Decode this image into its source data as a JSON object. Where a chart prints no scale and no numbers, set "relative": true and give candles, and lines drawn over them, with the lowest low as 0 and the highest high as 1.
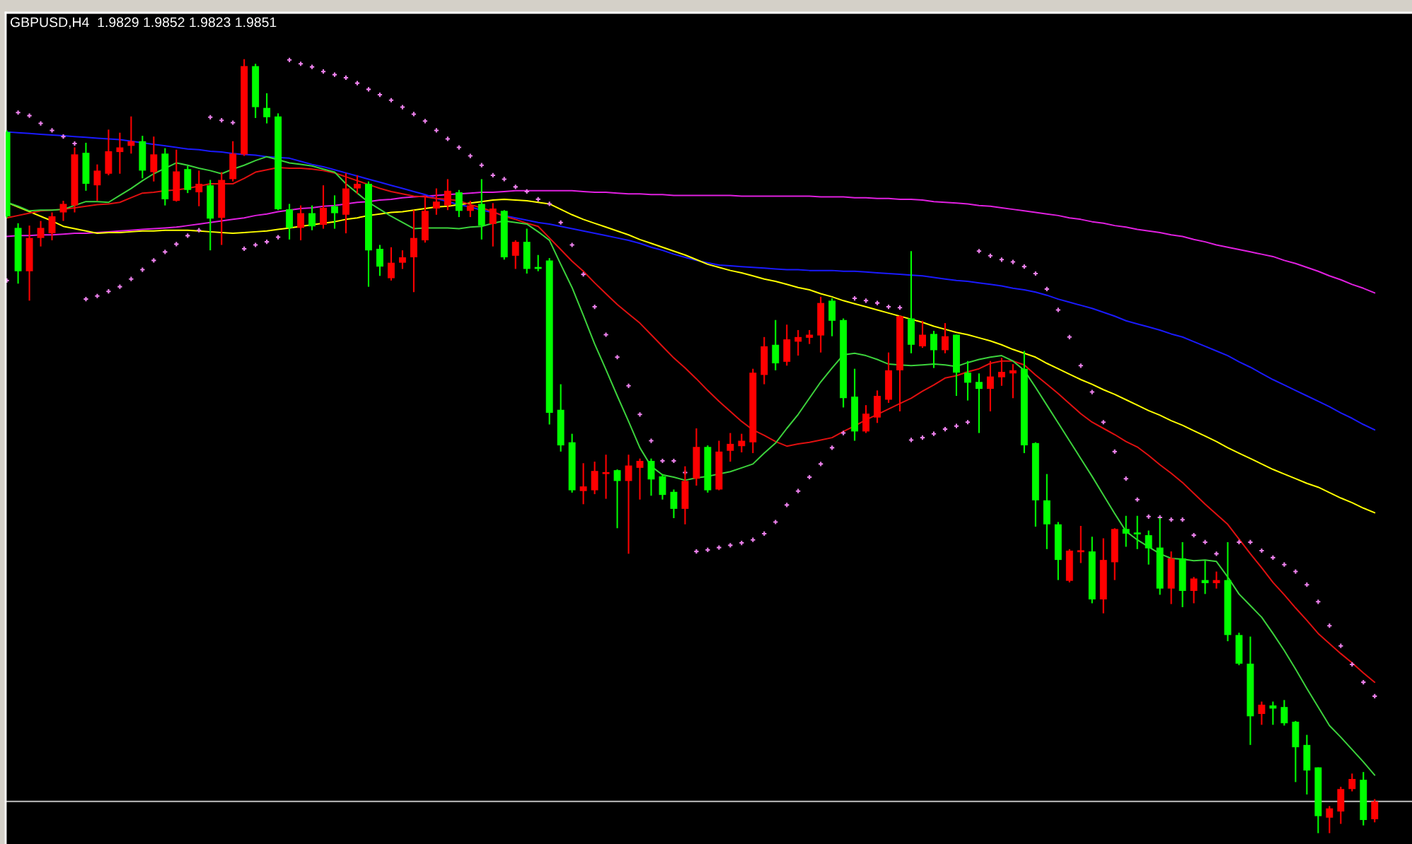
{
  "chart_data": {
    "type": "candlestick",
    "title": "GBPUSD,H4  1.9829 1.9852 1.9823 1.9851",
    "relative": true,
    "tick_labels": false,
    "categories": [
      null,
      null,
      null,
      null,
      null,
      null,
      null,
      null,
      null,
      null,
      null,
      null,
      null,
      null,
      null,
      null,
      null,
      null,
      null,
      null,
      null,
      null,
      null,
      null,
      null,
      null,
      null,
      null,
      null,
      null,
      null,
      null,
      null,
      null,
      null,
      null,
      null,
      null,
      null,
      null,
      null,
      null,
      null,
      null,
      null,
      null,
      null,
      null,
      null,
      null,
      null,
      null,
      null,
      null,
      null,
      null,
      null,
      null,
      null,
      null,
      null,
      null,
      null,
      null,
      null,
      null,
      null,
      null,
      null,
      null,
      null,
      null,
      null,
      null,
      null,
      null,
      null,
      null,
      null,
      null,
      null,
      null,
      null,
      null,
      null,
      null,
      null,
      null,
      null,
      null,
      null,
      null,
      null,
      null,
      null,
      null,
      null,
      null,
      null,
      null,
      null,
      null,
      null,
      null,
      null,
      null,
      null,
      null,
      null,
      null,
      null,
      null,
      null,
      null,
      null,
      null,
      null,
      null,
      null,
      null,
      null,
      null
    ],
    "ohlc": [
      [
        0.906,
        0.908,
        0.795,
        0.797
      ],
      [
        0.782,
        0.788,
        0.71,
        0.726
      ],
      [
        0.726,
        0.785,
        0.688,
        0.769
      ],
      [
        0.769,
        0.791,
        0.758,
        0.782
      ],
      [
        0.775,
        0.802,
        0.766,
        0.797
      ],
      [
        0.802,
        0.817,
        0.791,
        0.813
      ],
      [
        0.811,
        0.886,
        0.802,
        0.877
      ],
      [
        0.879,
        0.892,
        0.83,
        0.839
      ],
      [
        0.837,
        0.864,
        0.817,
        0.856
      ],
      [
        0.852,
        0.909,
        0.85,
        0.881
      ],
      [
        0.88,
        0.905,
        0.852,
        0.886
      ],
      [
        0.888,
        0.926,
        0.878,
        0.894
      ],
      [
        0.894,
        0.901,
        0.846,
        0.856
      ],
      [
        0.854,
        0.9,
        0.842,
        0.877
      ],
      [
        0.878,
        0.885,
        0.811,
        0.819
      ],
      [
        0.817,
        0.883,
        0.816,
        0.855
      ],
      [
        0.858,
        0.862,
        0.827,
        0.831
      ],
      [
        0.828,
        0.856,
        0.81,
        0.839
      ],
      [
        0.837,
        0.844,
        0.753,
        0.794
      ],
      [
        0.795,
        0.854,
        0.76,
        0.844
      ],
      [
        0.845,
        0.894,
        0.842,
        0.878
      ],
      [
        0.877,
        1.0,
        0.875,
        0.991
      ],
      [
        0.991,
        0.994,
        0.924,
        0.938
      ],
      [
        0.937,
        0.956,
        0.917,
        0.925
      ],
      [
        0.926,
        0.93,
        0.805,
        0.806
      ],
      [
        0.806,
        0.813,
        0.767,
        0.782
      ],
      [
        0.782,
        0.811,
        0.766,
        0.801
      ],
      [
        0.801,
        0.811,
        0.779,
        0.784
      ],
      [
        0.786,
        0.837,
        0.781,
        0.808
      ],
      [
        0.81,
        0.824,
        0.781,
        0.801
      ],
      [
        0.799,
        0.853,
        0.775,
        0.833
      ],
      [
        0.833,
        0.85,
        0.826,
        0.839
      ],
      [
        0.839,
        0.842,
        0.706,
        0.753
      ],
      [
        0.755,
        0.76,
        0.72,
        0.732
      ],
      [
        0.717,
        0.757,
        0.714,
        0.737
      ],
      [
        0.737,
        0.753,
        0.729,
        0.744
      ],
      [
        0.744,
        0.805,
        0.699,
        0.769
      ],
      [
        0.766,
        0.824,
        0.763,
        0.804
      ],
      [
        0.807,
        0.833,
        0.799,
        0.816
      ],
      [
        0.811,
        0.845,
        0.805,
        0.83
      ],
      [
        0.828,
        0.831,
        0.796,
        0.804
      ],
      [
        0.804,
        0.817,
        0.796,
        0.811
      ],
      [
        0.813,
        0.845,
        0.767,
        0.785
      ],
      [
        0.787,
        0.814,
        0.758,
        0.807
      ],
      [
        0.804,
        0.805,
        0.741,
        0.744
      ],
      [
        0.746,
        0.766,
        0.729,
        0.764
      ],
      [
        0.764,
        0.781,
        0.723,
        0.729
      ],
      [
        0.731,
        0.747,
        0.726,
        0.729
      ],
      [
        0.74,
        0.743,
        0.528,
        0.543
      ],
      [
        0.547,
        0.58,
        0.493,
        0.501
      ],
      [
        0.505,
        0.516,
        0.44,
        0.443
      ],
      [
        0.442,
        0.478,
        0.425,
        0.448
      ],
      [
        0.443,
        0.48,
        0.438,
        0.468
      ],
      [
        0.464,
        0.489,
        0.432,
        0.466
      ],
      [
        0.469,
        0.47,
        0.394,
        0.455
      ],
      [
        0.455,
        0.489,
        0.361,
        0.475
      ],
      [
        0.472,
        0.484,
        0.431,
        0.481
      ],
      [
        0.481,
        0.484,
        0.436,
        0.457
      ],
      [
        0.461,
        0.464,
        0.431,
        0.437
      ],
      [
        0.441,
        0.444,
        0.407,
        0.419
      ],
      [
        0.419,
        0.474,
        0.399,
        0.455
      ],
      [
        0.458,
        0.523,
        0.449,
        0.499
      ],
      [
        0.499,
        0.501,
        0.44,
        0.443
      ],
      [
        0.444,
        0.507,
        0.443,
        0.493
      ],
      [
        0.494,
        0.517,
        0.48,
        0.503
      ],
      [
        0.5,
        0.516,
        0.492,
        0.507
      ],
      [
        0.505,
        0.6,
        0.491,
        0.595
      ],
      [
        0.592,
        0.641,
        0.58,
        0.629
      ],
      [
        0.631,
        0.663,
        0.598,
        0.607
      ],
      [
        0.609,
        0.657,
        0.604,
        0.638
      ],
      [
        0.635,
        0.65,
        0.617,
        0.641
      ],
      [
        0.64,
        0.65,
        0.632,
        0.644
      ],
      [
        0.643,
        0.693,
        0.621,
        0.685
      ],
      [
        0.688,
        0.691,
        0.642,
        0.662
      ],
      [
        0.663,
        0.665,
        0.55,
        0.562
      ],
      [
        0.564,
        0.6,
        0.507,
        0.519
      ],
      [
        0.519,
        0.553,
        0.517,
        0.542
      ],
      [
        0.537,
        0.572,
        0.53,
        0.565
      ],
      [
        0.56,
        0.621,
        0.556,
        0.598
      ],
      [
        0.598,
        0.669,
        0.545,
        0.668
      ],
      [
        0.665,
        0.752,
        0.62,
        0.631
      ],
      [
        0.629,
        0.662,
        0.627,
        0.644
      ],
      [
        0.645,
        0.649,
        0.601,
        0.624
      ],
      [
        0.624,
        0.659,
        0.62,
        0.642
      ],
      [
        0.644,
        0.644,
        0.565,
        0.595
      ],
      [
        0.595,
        0.61,
        0.559,
        0.582
      ],
      [
        0.583,
        0.594,
        0.517,
        0.574
      ],
      [
        0.574,
        0.61,
        0.545,
        0.59
      ],
      [
        0.589,
        0.614,
        0.578,
        0.596
      ],
      [
        0.594,
        0.606,
        0.562,
        0.598
      ],
      [
        0.6,
        0.623,
        0.491,
        0.501
      ],
      [
        0.504,
        0.505,
        0.396,
        0.43
      ],
      [
        0.43,
        0.464,
        0.367,
        0.399
      ],
      [
        0.399,
        0.402,
        0.327,
        0.353
      ],
      [
        0.326,
        0.367,
        0.324,
        0.365
      ],
      [
        0.363,
        0.397,
        0.349,
        0.365
      ],
      [
        0.364,
        0.383,
        0.297,
        0.302
      ],
      [
        0.302,
        0.381,
        0.284,
        0.353
      ],
      [
        0.35,
        0.394,
        0.327,
        0.393
      ],
      [
        0.393,
        0.41,
        0.37,
        0.387
      ],
      [
        0.388,
        0.41,
        0.367,
        0.386
      ],
      [
        0.385,
        0.391,
        0.347,
        0.368
      ],
      [
        0.369,
        0.407,
        0.308,
        0.316
      ],
      [
        0.316,
        0.364,
        0.296,
        0.355
      ],
      [
        0.355,
        0.376,
        0.292,
        0.313
      ],
      [
        0.313,
        0.331,
        0.297,
        0.329
      ],
      [
        0.327,
        0.352,
        0.309,
        0.323
      ],
      [
        0.323,
        0.338,
        0.316,
        0.327
      ],
      [
        0.327,
        0.376,
        0.248,
        0.256
      ],
      [
        0.256,
        0.259,
        0.217,
        0.219
      ],
      [
        0.219,
        0.254,
        0.114,
        0.151
      ],
      [
        0.154,
        0.17,
        0.14,
        0.166
      ],
      [
        0.165,
        0.17,
        0.14,
        0.161
      ],
      [
        0.163,
        0.172,
        0.139,
        0.142
      ],
      [
        0.144,
        0.145,
        0.066,
        0.111
      ],
      [
        0.114,
        0.127,
        0.05,
        0.081
      ],
      [
        0.085,
        0.085,
        0.0,
        0.022
      ],
      [
        0.02,
        0.035,
        0.0,
        0.032
      ],
      [
        0.028,
        0.06,
        0.012,
        0.057
      ],
      [
        0.057,
        0.077,
        0.054,
        0.07
      ],
      [
        0.069,
        0.079,
        0.01,
        0.017
      ],
      [
        0.018,
        0.044,
        0.014,
        0.041
      ]
    ],
    "colors": [
      "#00ff00",
      "#00ff00",
      "#ff0000",
      "#ff0000",
      "#ff0000",
      "#ff0000",
      "#ff0000",
      "#00ff00",
      "#ff0000",
      "#ff0000",
      "#ff0000",
      "#ff0000",
      "#00ff00",
      "#ff0000",
      "#00ff00",
      "#ff0000",
      "#00ff00",
      "#ff0000",
      "#00ff00",
      "#ff0000",
      "#ff0000",
      "#ff0000",
      "#00ff00",
      "#00ff00",
      "#00ff00",
      "#00ff00",
      "#ff0000",
      "#00ff00",
      "#ff0000",
      "#00ff00",
      "#ff0000",
      "#ff0000",
      "#00ff00",
      "#00ff00",
      "#ff0000",
      "#ff0000",
      "#ff0000",
      "#ff0000",
      "#ff0000",
      "#ff0000",
      "#00ff00",
      "#ff0000",
      "#00ff00",
      "#ff0000",
      "#00ff00",
      "#ff0000",
      "#00ff00",
      "#00ff00",
      "#00ff00",
      "#00ff00",
      "#00ff00",
      "#ff0000",
      "#ff0000",
      "#ff0000",
      "#00ff00",
      "#ff0000",
      "#ff0000",
      "#00ff00",
      "#00ff00",
      "#00ff00",
      "#ff0000",
      "#ff0000",
      "#00ff00",
      "#ff0000",
      "#ff0000",
      "#ff0000",
      "#ff0000",
      "#ff0000",
      "#00ff00",
      "#ff0000",
      "#ff0000",
      "#ff0000",
      "#ff0000",
      "#00ff00",
      "#00ff00",
      "#00ff00",
      "#ff0000",
      "#ff0000",
      "#ff0000",
      "#ff0000",
      "#00ff00",
      "#ff0000",
      "#00ff00",
      "#ff0000",
      "#00ff00",
      "#00ff00",
      "#00ff00",
      "#ff0000",
      "#ff0000",
      "#ff0000",
      "#00ff00",
      "#00ff00",
      "#00ff00",
      "#00ff00",
      "#ff0000",
      "#ff0000",
      "#00ff00",
      "#ff0000",
      "#ff0000",
      "#00ff00",
      "#00ff00",
      "#00ff00",
      "#00ff00",
      "#ff0000",
      "#00ff00",
      "#ff0000",
      "#00ff00",
      "#ff0000",
      "#00ff00",
      "#00ff00",
      "#00ff00",
      "#ff0000",
      "#00ff00",
      "#00ff00",
      "#00ff00",
      "#00ff00",
      "#00ff00",
      "#ff0000",
      "#ff0000",
      "#ff0000",
      "#00ff00",
      "#ff0000"
    ],
    "series": [
      {
        "type": "line",
        "color": "#e020e0",
        "values": [
          0.771,
          0.772,
          0.772,
          0.773,
          0.773,
          0.774,
          0.775,
          0.775,
          0.776,
          0.777,
          0.778,
          0.779,
          0.78,
          0.781,
          0.782,
          0.783,
          0.785,
          0.787,
          0.789,
          0.791,
          0.793,
          0.795,
          0.798,
          0.8,
          0.803,
          0.805,
          0.807,
          0.808,
          0.81,
          0.811,
          0.813,
          0.815,
          0.816,
          0.818,
          0.819,
          0.821,
          0.822,
          0.823,
          0.824,
          0.825,
          0.826,
          0.827,
          0.828,
          0.828,
          0.829,
          0.83,
          0.83,
          0.83,
          0.83,
          0.83,
          0.83,
          0.829,
          0.828,
          0.828,
          0.827,
          0.826,
          0.826,
          0.825,
          0.825,
          0.824,
          0.824,
          0.824,
          0.824,
          0.824,
          0.824,
          0.823,
          0.823,
          0.823,
          0.823,
          0.823,
          0.823,
          0.823,
          0.822,
          0.822,
          0.822,
          0.821,
          0.821,
          0.82,
          0.82,
          0.819,
          0.819,
          0.818,
          0.816,
          0.815,
          0.814,
          0.813,
          0.811,
          0.81,
          0.808,
          0.806,
          0.804,
          0.802,
          0.8,
          0.798,
          0.795,
          0.793,
          0.79,
          0.788,
          0.785,
          0.783,
          0.78,
          0.778,
          0.776,
          0.773,
          0.771,
          0.767,
          0.764,
          0.76,
          0.757,
          0.754,
          0.751,
          0.748,
          0.745,
          0.74,
          0.736,
          0.731,
          0.726,
          0.72,
          0.715,
          0.709,
          0.704,
          0.698
        ]
      },
      {
        "type": "line",
        "color": "#1a1aff",
        "values": [
          0.906,
          0.905,
          0.904,
          0.903,
          0.902,
          0.901,
          0.9,
          0.899,
          0.898,
          0.897,
          0.896,
          0.894,
          0.892,
          0.89,
          0.888,
          0.886,
          0.884,
          0.883,
          0.881,
          0.88,
          0.878,
          0.877,
          0.876,
          0.874,
          0.873,
          0.872,
          0.868,
          0.864,
          0.861,
          0.857,
          0.853,
          0.849,
          0.845,
          0.841,
          0.837,
          0.833,
          0.829,
          0.825,
          0.82,
          0.816,
          0.812,
          0.809,
          0.805,
          0.802,
          0.798,
          0.795,
          0.792,
          0.789,
          0.787,
          0.784,
          0.781,
          0.778,
          0.775,
          0.772,
          0.769,
          0.766,
          0.762,
          0.757,
          0.753,
          0.748,
          0.744,
          0.74,
          0.737,
          0.734,
          0.733,
          0.732,
          0.731,
          0.73,
          0.729,
          0.728,
          0.728,
          0.727,
          0.727,
          0.727,
          0.726,
          0.726,
          0.725,
          0.724,
          0.723,
          0.722,
          0.721,
          0.72,
          0.718,
          0.716,
          0.714,
          0.713,
          0.711,
          0.709,
          0.707,
          0.704,
          0.702,
          0.699,
          0.695,
          0.69,
          0.686,
          0.682,
          0.678,
          0.673,
          0.668,
          0.662,
          0.658,
          0.654,
          0.65,
          0.645,
          0.641,
          0.635,
          0.629,
          0.623,
          0.617,
          0.609,
          0.602,
          0.594,
          0.586,
          0.579,
          0.572,
          0.565,
          0.558,
          0.551,
          0.543,
          0.536,
          0.528,
          0.521
        ]
      },
      {
        "type": "line",
        "color": "#ffff00",
        "values": [
          0.815,
          0.809,
          0.803,
          0.797,
          0.791,
          0.784,
          0.781,
          0.778,
          0.775,
          0.776,
          0.776,
          0.777,
          0.778,
          0.778,
          0.779,
          0.779,
          0.779,
          0.778,
          0.777,
          0.776,
          0.775,
          0.776,
          0.777,
          0.778,
          0.78,
          0.782,
          0.784,
          0.786,
          0.788,
          0.79,
          0.793,
          0.795,
          0.798,
          0.8,
          0.802,
          0.803,
          0.805,
          0.807,
          0.809,
          0.81,
          0.812,
          0.814,
          0.816,
          0.818,
          0.819,
          0.818,
          0.817,
          0.815,
          0.813,
          0.806,
          0.799,
          0.793,
          0.788,
          0.783,
          0.778,
          0.773,
          0.767,
          0.762,
          0.757,
          0.752,
          0.747,
          0.741,
          0.735,
          0.731,
          0.727,
          0.724,
          0.72,
          0.716,
          0.713,
          0.709,
          0.705,
          0.702,
          0.697,
          0.693,
          0.688,
          0.684,
          0.68,
          0.676,
          0.672,
          0.668,
          0.664,
          0.66,
          0.655,
          0.651,
          0.647,
          0.644,
          0.64,
          0.636,
          0.631,
          0.625,
          0.62,
          0.615,
          0.607,
          0.6,
          0.593,
          0.586,
          0.58,
          0.573,
          0.567,
          0.56,
          0.553,
          0.546,
          0.54,
          0.533,
          0.527,
          0.52,
          0.513,
          0.506,
          0.498,
          0.491,
          0.484,
          0.477,
          0.47,
          0.464,
          0.458,
          0.452,
          0.447,
          0.44,
          0.433,
          0.427,
          0.42,
          0.414
        ]
      },
      {
        "type": "line",
        "color": "#e01010",
        "values": [
          0.795,
          0.798,
          0.801,
          0.804,
          0.805,
          0.806,
          0.808,
          0.81,
          0.812,
          0.813,
          0.815,
          0.821,
          0.827,
          0.828,
          0.83,
          0.831,
          0.833,
          0.836,
          0.839,
          0.839,
          0.839,
          0.846,
          0.854,
          0.857,
          0.86,
          0.859,
          0.859,
          0.858,
          0.856,
          0.853,
          0.848,
          0.843,
          0.838,
          0.833,
          0.829,
          0.826,
          0.823,
          0.822,
          0.82,
          0.819,
          0.817,
          0.812,
          0.808,
          0.803,
          0.797,
          0.793,
          0.788,
          0.784,
          0.769,
          0.754,
          0.739,
          0.726,
          0.711,
          0.697,
          0.683,
          0.671,
          0.659,
          0.644,
          0.629,
          0.614,
          0.601,
          0.587,
          0.572,
          0.558,
          0.545,
          0.532,
          0.521,
          0.514,
          0.506,
          0.5,
          0.503,
          0.505,
          0.508,
          0.511,
          0.519,
          0.526,
          0.534,
          0.541,
          0.548,
          0.555,
          0.562,
          0.571,
          0.579,
          0.588,
          0.591,
          0.596,
          0.6,
          0.607,
          0.61,
          0.61,
          0.605,
          0.592,
          0.58,
          0.568,
          0.555,
          0.542,
          0.531,
          0.523,
          0.515,
          0.506,
          0.499,
          0.488,
          0.476,
          0.465,
          0.453,
          0.439,
          0.425,
          0.412,
          0.399,
          0.38,
          0.361,
          0.343,
          0.324,
          0.308,
          0.291,
          0.275,
          0.258,
          0.245,
          0.232,
          0.22,
          0.207,
          0.195
        ]
      },
      {
        "type": "line",
        "color": "#3cd23c",
        "values": [
          0.815,
          0.81,
          0.804,
          0.805,
          0.805,
          0.806,
          0.811,
          0.816,
          0.816,
          0.815,
          0.824,
          0.833,
          0.843,
          0.852,
          0.859,
          0.866,
          0.863,
          0.859,
          0.856,
          0.852,
          0.858,
          0.863,
          0.869,
          0.874,
          0.87,
          0.866,
          0.864,
          0.862,
          0.858,
          0.854,
          0.839,
          0.827,
          0.815,
          0.806,
          0.797,
          0.789,
          0.781,
          0.782,
          0.782,
          0.782,
          0.781,
          0.783,
          0.784,
          0.788,
          0.791,
          0.789,
          0.787,
          0.777,
          0.766,
          0.735,
          0.705,
          0.669,
          0.632,
          0.599,
          0.565,
          0.532,
          0.498,
          0.474,
          0.463,
          0.46,
          0.456,
          0.459,
          0.461,
          0.464,
          0.467,
          0.472,
          0.477,
          0.491,
          0.504,
          0.523,
          0.541,
          0.562,
          0.583,
          0.601,
          0.618,
          0.62,
          0.617,
          0.612,
          0.606,
          0.605,
          0.604,
          0.605,
          0.606,
          0.605,
          0.603,
          0.608,
          0.612,
          0.615,
          0.617,
          0.61,
          0.598,
          0.576,
          0.553,
          0.53,
          0.507,
          0.484,
          0.461,
          0.437,
          0.413,
          0.39,
          0.379,
          0.37,
          0.361,
          0.355,
          0.354,
          0.352,
          0.353,
          0.351,
          0.331,
          0.309,
          0.294,
          0.279,
          0.258,
          0.236,
          0.212,
          0.187,
          0.163,
          0.139,
          0.124,
          0.108,
          0.092,
          0.075
        ]
      },
      {
        "type": "scatter",
        "color": "#ee82ee",
        "marker": "cross",
        "values": [
          0.714,
          0.931,
          0.927,
          0.917,
          0.908,
          0.9,
          0.891,
          0.69,
          0.694,
          0.7,
          0.706,
          0.716,
          0.728,
          0.74,
          0.751,
          0.761,
          0.772,
          0.779,
          0.925,
          0.921,
          0.918,
          0.755,
          0.76,
          0.764,
          0.77,
          0.999,
          0.994,
          0.99,
          0.984,
          0.98,
          0.976,
          0.969,
          0.961,
          0.954,
          0.947,
          0.938,
          0.929,
          0.92,
          0.908,
          0.897,
          0.886,
          0.875,
          0.863,
          0.85,
          0.845,
          0.835,
          0.829,
          0.819,
          0.813,
          0.789,
          0.76,
          0.722,
          0.68,
          0.644,
          0.615,
          0.578,
          0.541,
          0.507,
          0.481,
          0.481,
          0.466,
          0.364,
          0.366,
          0.369,
          0.372,
          0.375,
          0.379,
          0.387,
          0.402,
          0.424,
          0.442,
          0.46,
          0.477,
          0.498,
          0.517,
          0.691,
          0.688,
          0.685,
          0.68,
          0.679,
          0.508,
          0.511,
          0.516,
          0.522,
          0.526,
          0.531,
          0.752,
          0.746,
          0.741,
          0.738,
          0.732,
          0.723,
          0.703,
          0.676,
          0.641,
          0.604,
          0.57,
          0.531,
          0.493,
          0.458,
          0.431,
          0.409,
          0.408,
          0.405,
          0.405,
          0.385,
          0.376,
          0.361,
          null,
          0.376,
          0.376,
          0.365,
          0.356,
          0.347,
          0.338,
          0.321,
          0.299,
          0.268,
          0.242,
          0.218,
          0.195,
          0.177
        ]
      }
    ],
    "ref_lines": [
      {
        "axis": "y",
        "value": 0.041,
        "color": "#c0c0c0"
      }
    ]
  }
}
